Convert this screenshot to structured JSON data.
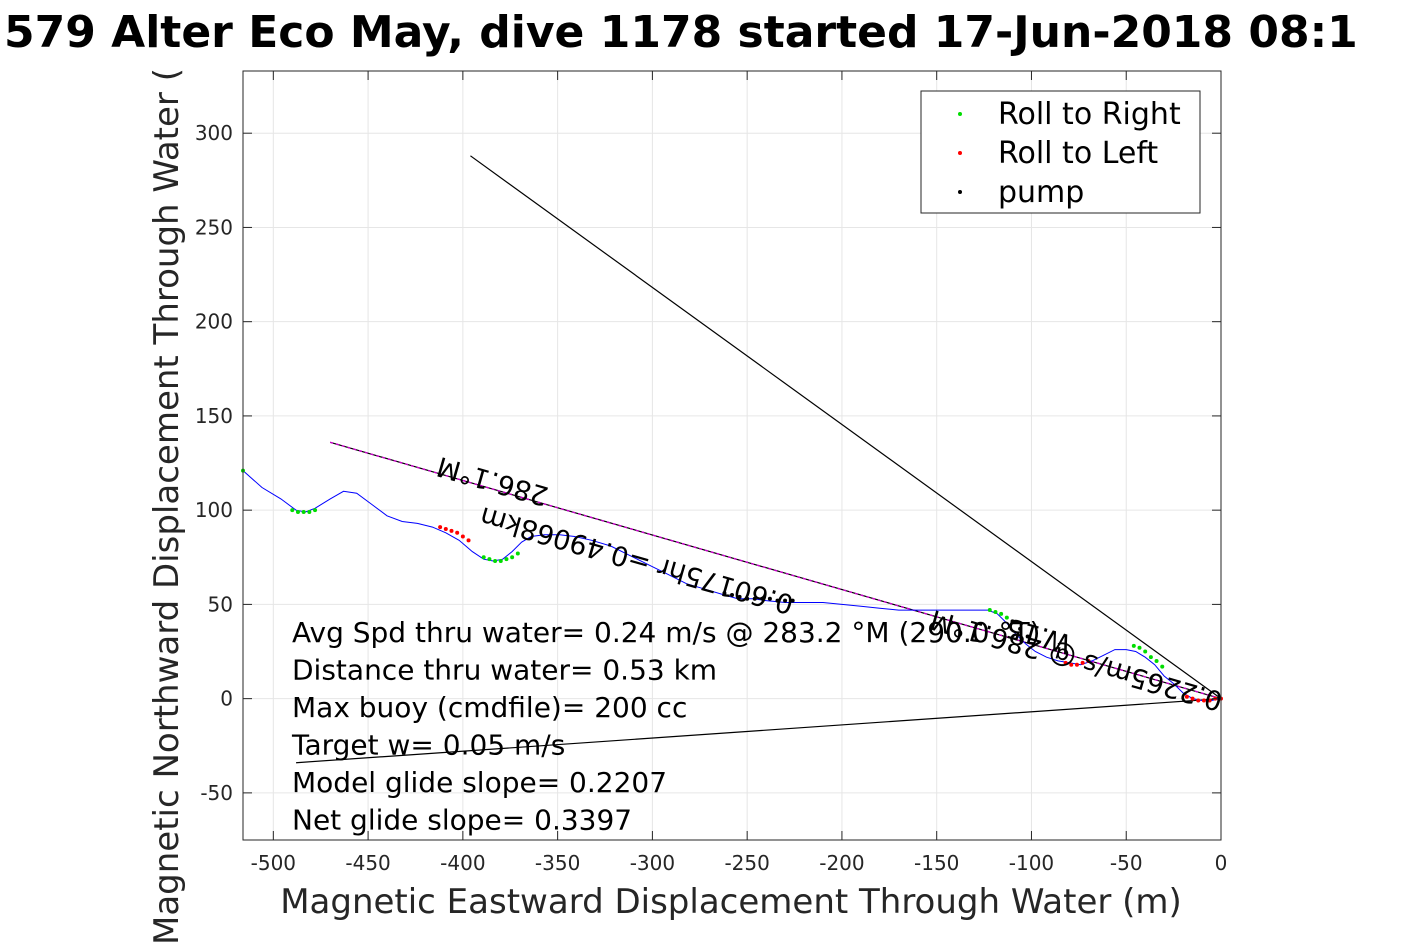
{
  "chart_data": {
    "type": "scatter",
    "title": "579 Alter Eco May, dive 1178 started 17-Jun-2018 08:1",
    "xlabel": "Magnetic Eastward Displacement Through Water (m)",
    "ylabel": "Magnetic Northward Displacement Through Water (",
    "xlim": [
      -516,
      0
    ],
    "ylim": [
      -75,
      333
    ],
    "grid": true,
    "xticks": [
      "-500",
      "-450",
      "-400",
      "-350",
      "-300",
      "-250",
      "-200",
      "-150",
      "-100",
      "-50",
      "0"
    ],
    "xtick_values": [
      -500,
      -450,
      -400,
      -350,
      -300,
      -250,
      -200,
      -150,
      -100,
      -50,
      0
    ],
    "yticks": [
      "-50",
      "0",
      "50",
      "100",
      "150",
      "200",
      "250",
      "300"
    ],
    "ytick_values": [
      -50,
      0,
      50,
      100,
      150,
      200,
      250,
      300
    ],
    "legend_position": "top-right",
    "legend": [
      {
        "label": "Roll to Right",
        "color": "#00dd00"
      },
      {
        "label": "Roll to Left",
        "color": "#ff0000"
      },
      {
        "label": "pump",
        "color": "#000000"
      }
    ],
    "track": {
      "color": "#0000ff",
      "x": [
        -516,
        -506,
        -496,
        -488,
        -483,
        -478,
        -470,
        -463,
        -456,
        -448,
        -440,
        -432,
        -424,
        -416,
        -409,
        -402,
        -395,
        -389,
        -384,
        -379,
        -374,
        -369,
        -364,
        -357,
        -349,
        -341,
        -332,
        -322,
        -312,
        -302,
        -292,
        -282,
        -272,
        -262,
        -255,
        -247,
        -240,
        -230,
        -220,
        -210,
        -200,
        -190,
        -180,
        -170,
        -160,
        -150,
        -140,
        -130,
        -123,
        -118,
        -113,
        -108,
        -103,
        -98,
        -92,
        -86,
        -80,
        -74,
        -68,
        -62,
        -56,
        -50,
        -45,
        -40,
        -35,
        -30,
        -25,
        -20,
        -15,
        -10,
        -5,
        0
      ],
      "y": [
        121,
        112,
        106,
        100,
        99,
        101,
        106,
        110,
        109,
        103,
        97,
        94,
        93,
        91,
        88,
        84,
        78,
        74,
        73,
        74,
        78,
        83,
        86,
        87,
        87,
        86,
        84,
        81,
        76,
        71,
        66,
        61,
        58,
        55,
        53,
        53,
        52,
        51,
        51,
        51,
        50,
        49,
        48,
        47,
        47,
        47,
        47,
        47,
        47,
        45,
        40,
        34,
        29,
        25,
        22,
        20,
        19,
        18,
        20,
        23,
        26,
        26,
        25,
        22,
        18,
        12,
        8,
        3,
        0,
        -1,
        -1,
        0
      ]
    },
    "roll_right": {
      "color": "#00dd00",
      "x": [
        -516,
        -490,
        -487,
        -484,
        -481,
        -478,
        -389,
        -386,
        -383,
        -380,
        -377,
        -374,
        -371,
        -122,
        -119,
        -116,
        -113,
        -46,
        -43,
        -40,
        -37,
        -34,
        -31
      ],
      "y": [
        121,
        100,
        99,
        99,
        99,
        100,
        75,
        74,
        73,
        73,
        74,
        75,
        77,
        47,
        46,
        45,
        43,
        28,
        27,
        25,
        22,
        20,
        17
      ]
    },
    "roll_left": {
      "color": "#ff0000",
      "x": [
        -412,
        -409,
        -406,
        -403,
        -400,
        -397,
        -82,
        -79,
        -76,
        -73,
        -70,
        -18,
        -15,
        -12,
        -9,
        -6,
        -3,
        0
      ],
      "y": [
        91,
        90,
        89,
        88,
        86,
        84,
        19,
        18,
        18,
        19,
        20,
        1,
        0,
        -1,
        -1,
        -1,
        0,
        0
      ]
    },
    "pump": {
      "color": "#000000",
      "x": [
        -262,
        -258,
        -254,
        -250,
        -246,
        -242,
        -238,
        -234,
        -230,
        -226,
        -110,
        -106,
        -102
      ],
      "y": [
        56,
        55,
        54,
        53,
        53,
        53,
        53,
        52,
        52,
        52,
        41,
        37,
        33
      ]
    },
    "lines": [
      {
        "name": "heading-line",
        "color": "#000000",
        "x": [
          -470,
          0
        ],
        "y": [
          136,
          0
        ]
      },
      {
        "name": "heading-line-dashed",
        "color": "#cc00cc",
        "x": [
          -470,
          0
        ],
        "y": [
          136,
          0
        ]
      },
      {
        "name": "current-line",
        "color": "#000000",
        "x": [
          -396,
          0
        ],
        "y": [
          288,
          0
        ]
      },
      {
        "name": "drift-line",
        "color": "#000000",
        "x": [
          -488,
          0
        ],
        "y": [
          -34,
          0
        ]
      }
    ],
    "rotated_labels": [
      {
        "text": "286.1°M",
        "x": -383,
        "y": 120,
        "angle": 196
      },
      {
        "text": "0.60175hr =0.49068km",
        "x": -307,
        "y": 78,
        "angle": 196
      },
      {
        "text": "0.2265m/s @ 286.1°M",
        "x": -75,
        "y": 25,
        "angle": 196
      },
      {
        "text": "W.15",
        "x": -95,
        "y": 38,
        "angle": 196
      }
    ],
    "annotations": [
      "Avg Spd thru water=  0.24 m/s @ 283.2 °M (290.0 °T)",
      "Distance thru water=  0.53 km",
      "Max buoy (cmdfile)= 200 cc",
      "Target w= 0.05 m/s",
      "Model glide slope= 0.2207",
      "Net glide slope= 0.3397"
    ]
  }
}
